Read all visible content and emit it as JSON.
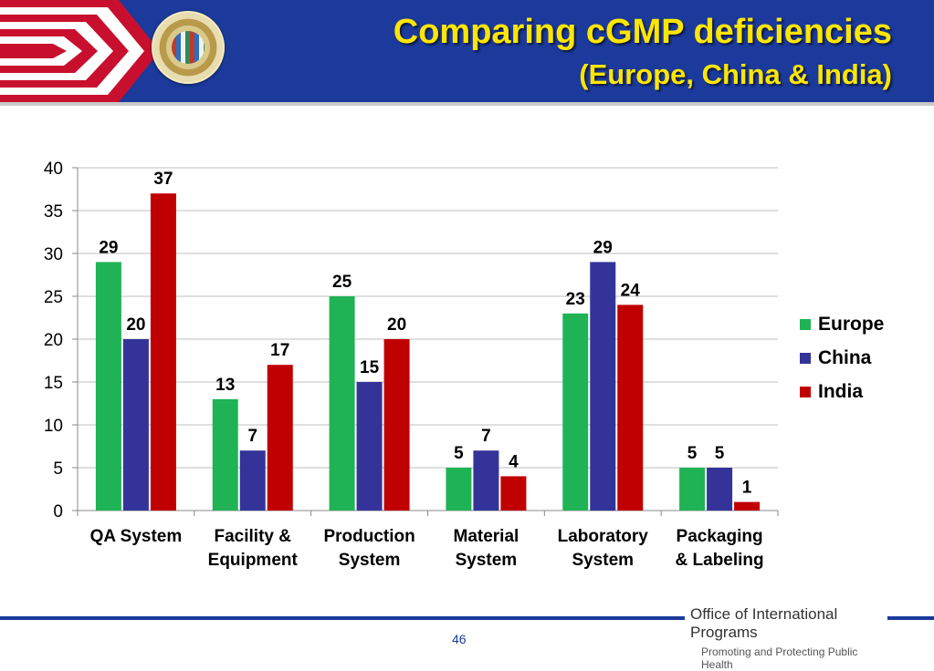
{
  "slide": {
    "title_line1": "Comparing cGMP deficiencies",
    "title_line2": "(Europe, China & India)",
    "page_number": "46",
    "footer_org": "Office of International Programs",
    "footer_tagline": "Promoting and Protecting Public Health"
  },
  "colors": {
    "header_bg": "#1b3a9c",
    "title_text": "#ffe600",
    "europe": "#1fb356",
    "china": "#333399",
    "india": "#c00000"
  },
  "chart_data": {
    "type": "bar",
    "categories": [
      [
        "QA System"
      ],
      [
        "Facility &",
        "Equipment"
      ],
      [
        "Production",
        "System"
      ],
      [
        "Material",
        "System"
      ],
      [
        "Laboratory",
        "System"
      ],
      [
        "Packaging",
        "& Labeling"
      ]
    ],
    "series": [
      {
        "name": "Europe",
        "color": "#1fb356",
        "values": [
          29,
          13,
          25,
          5,
          23,
          5
        ]
      },
      {
        "name": "China",
        "color": "#333399",
        "values": [
          20,
          7,
          15,
          7,
          29,
          5
        ]
      },
      {
        "name": "India",
        "color": "#c00000",
        "values": [
          37,
          17,
          20,
          4,
          24,
          1
        ]
      }
    ],
    "ylim": [
      0,
      40
    ],
    "yticks": [
      0,
      5,
      10,
      15,
      20,
      25,
      30,
      35,
      40
    ],
    "grid": true,
    "legend": "right",
    "data_labels": true
  }
}
